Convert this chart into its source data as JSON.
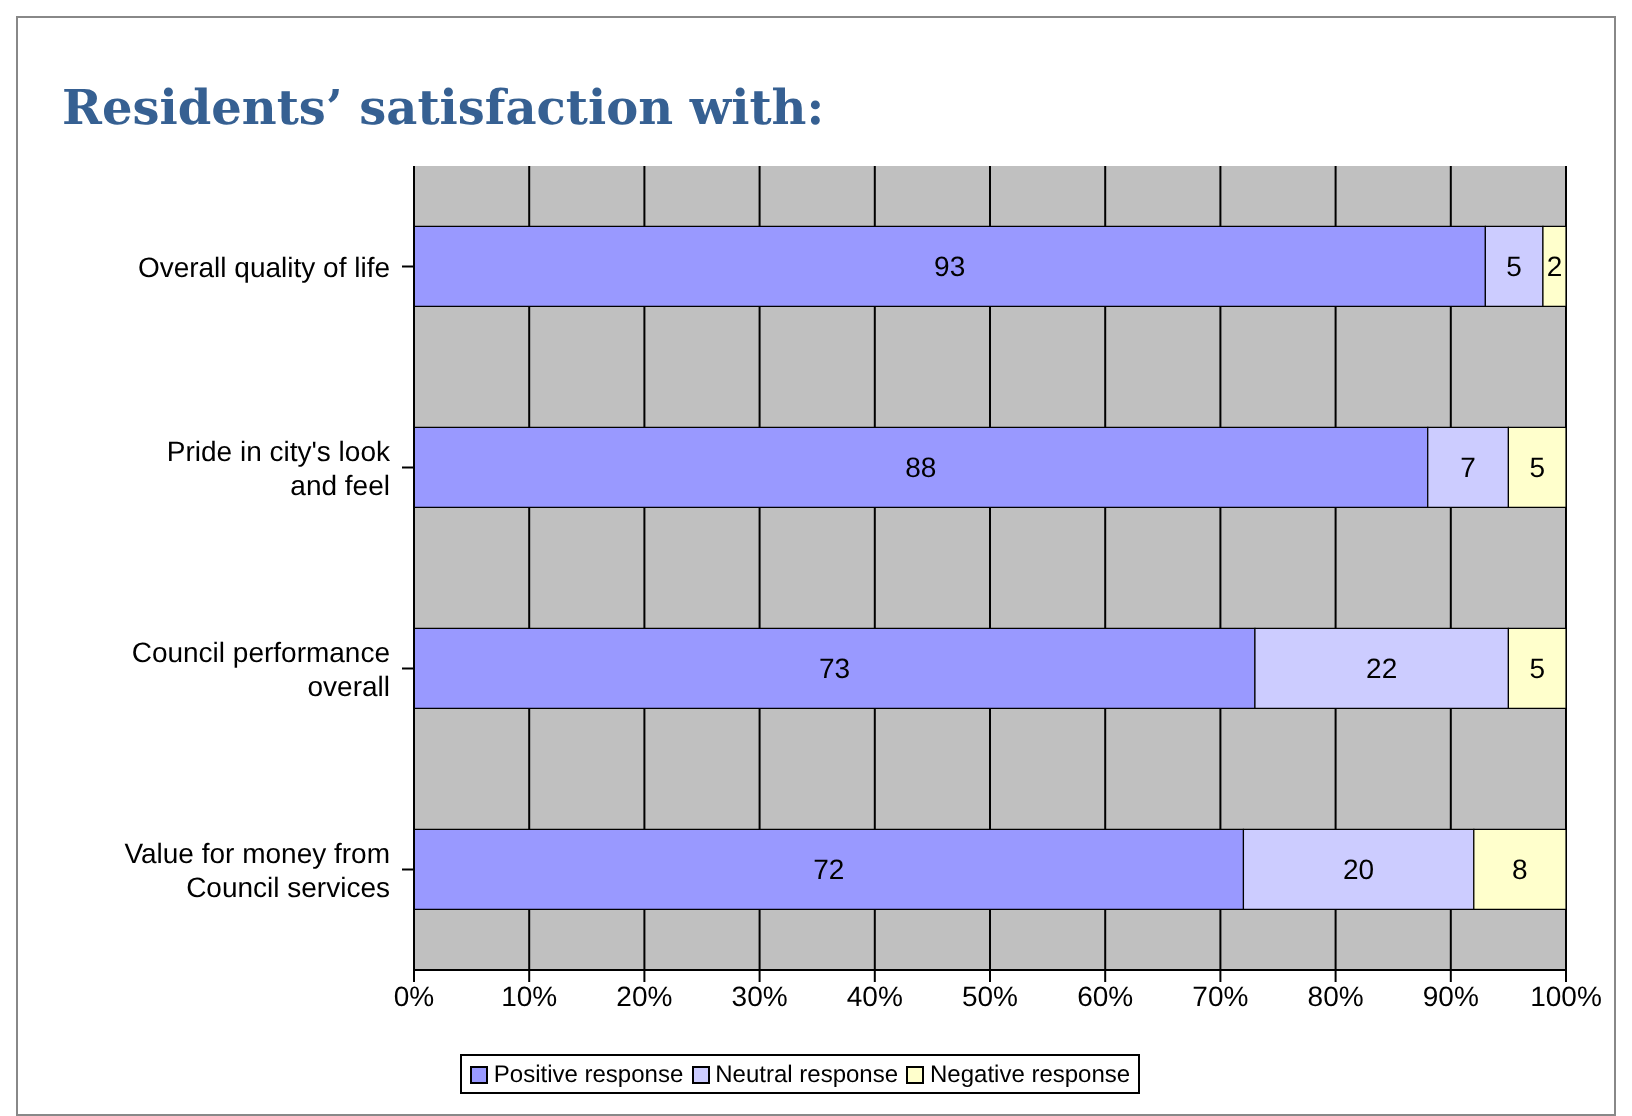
{
  "chart_data": {
    "type": "bar",
    "orientation": "horizontal",
    "stacked": true,
    "title": "Residents’ satisfaction with:",
    "categories": [
      "Overall quality of life",
      "Pride in city's look and feel",
      "Council performance overall",
      "Value for money from Council services"
    ],
    "series": [
      {
        "name": "Positive response",
        "color": "#9999ff",
        "values": [
          93,
          88,
          73,
          72
        ]
      },
      {
        "name": "Neutral response",
        "color": "#ccccff",
        "values": [
          5,
          7,
          22,
          20
        ]
      },
      {
        "name": "Negative response",
        "color": "#ffffcc",
        "values": [
          2,
          5,
          5,
          8
        ]
      }
    ],
    "xlim": [
      0,
      100
    ],
    "xticks": [
      {
        "value": 0,
        "label": "0%"
      },
      {
        "value": 10,
        "label": "10%"
      },
      {
        "value": 20,
        "label": "20%"
      },
      {
        "value": 30,
        "label": "30%"
      },
      {
        "value": 40,
        "label": "40%"
      },
      {
        "value": 50,
        "label": "50%"
      },
      {
        "value": 60,
        "label": "60%"
      },
      {
        "value": 70,
        "label": "70%"
      },
      {
        "value": 80,
        "label": "80%"
      },
      {
        "value": 90,
        "label": "90%"
      },
      {
        "value": 100,
        "label": "100%"
      }
    ],
    "data_labels": true,
    "grid": "x",
    "legend": "bottom"
  }
}
